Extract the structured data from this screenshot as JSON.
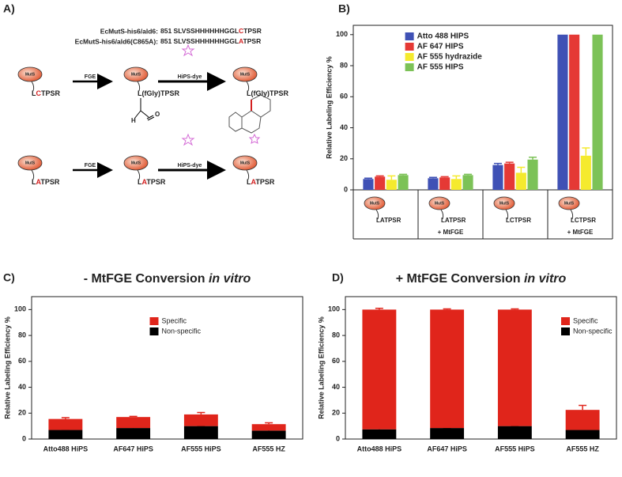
{
  "panel_labels": [
    "A)",
    "B)",
    "C)",
    "D)"
  ],
  "scheme": {
    "sequences": [
      {
        "name": "EcMutS-his6/ald6:",
        "sequence": [
          "851 SLVSSHHHHHHGGL",
          "C",
          "TPSR"
        ]
      },
      {
        "name": "EcMutS-his6/ald6(C865A):",
        "sequence": [
          "851 SLVSSHHHHHHGGL",
          "A",
          "TPSR"
        ]
      }
    ],
    "protein": "MutS",
    "enzyme": "FGE",
    "reagent": "HiPS-dye",
    "rows": [
      {
        "labels": [
          [
            "L",
            "C",
            "TPSR"
          ],
          [
            "L(fGly)TPSR"
          ],
          [
            "L(fGly)TPSR"
          ]
        ]
      },
      {
        "labels": [
          [
            "L",
            "A",
            "TPSR"
          ],
          [
            "L",
            "A",
            "TPSR"
          ],
          [
            "L",
            "A",
            "TPSR"
          ]
        ]
      }
    ],
    "aldehyde": [
      "H",
      "O"
    ]
  },
  "chart_data": [
    {
      "type": "bar",
      "ylabel": "Relative Labeling Efficiency %",
      "categories": [
        "LATPSR",
        "LATPSR",
        "LCTPSR",
        "LCTPSR"
      ],
      "category_notes": [
        null,
        "+ MtFGE",
        null,
        "+ MtFGE"
      ],
      "series": [
        {
          "name": "Atto 488 HIPS",
          "color": "#3f51b5",
          "values": [
            7,
            7.5,
            16,
            100
          ],
          "errors": [
            0.5,
            0.5,
            1,
            0
          ]
        },
        {
          "name": "AF 647 HIPS",
          "color": "#e53935",
          "values": [
            8.5,
            8,
            17,
            100
          ],
          "errors": [
            0.5,
            0.5,
            0.8,
            0
          ]
        },
        {
          "name": "AF 555 hydrazide",
          "color": "#f5ea2e",
          "values": [
            6.5,
            7,
            11,
            22
          ],
          "errors": [
            2.5,
            2,
            3.5,
            5
          ]
        },
        {
          "name": "AF 555 HIPS",
          "color": "#7cc257",
          "values": [
            9.5,
            9.5,
            19.5,
            100
          ],
          "errors": [
            0.5,
            0.5,
            1.5,
            0
          ]
        }
      ],
      "ylim": [
        0,
        106
      ],
      "yticks": [
        0,
        20,
        40,
        60,
        80,
        100
      ],
      "legend": "upper left"
    },
    {
      "type": "stacked_bar",
      "title": "- MtFGE Conversion",
      "title_emphasis": "in vitro",
      "ylabel": "Relative Labeling Efficiency %",
      "categories": [
        "Atto488 HiPS",
        "AF647 HiPS",
        "AF555 HiPS",
        "AF555 HZ"
      ],
      "series": [
        {
          "name": "Non-specific",
          "color": "#000000",
          "values": [
            7,
            8.5,
            10,
            6.5
          ],
          "errors": [
            0.3,
            0.5,
            0.3,
            2
          ]
        },
        {
          "name": "Specific",
          "color": "#e0251b",
          "values": [
            8.5,
            8.5,
            9,
            5
          ],
          "errors": [
            1,
            0.5,
            1.5,
            1
          ]
        }
      ],
      "ylim": [
        0,
        110
      ],
      "yticks": [
        0,
        20,
        40,
        60,
        80,
        100
      ],
      "legend": "upper center"
    },
    {
      "type": "stacked_bar",
      "title": "+ MtFGE Conversion",
      "title_emphasis": "in vitro",
      "ylabel": "Relative Labeling Efficiency %",
      "categories": [
        "Atto488 HiPS",
        "AF647 HiPS",
        "AF555 HiPS",
        "AF555 HZ"
      ],
      "series": [
        {
          "name": "Non-specific",
          "color": "#000000",
          "values": [
            7.5,
            8.5,
            10,
            7
          ],
          "errors": [
            1,
            0.3,
            0.3,
            2.5
          ]
        },
        {
          "name": "Specific",
          "color": "#e0251b",
          "values": [
            92.5,
            91.5,
            90,
            15.5
          ],
          "errors": [
            1,
            0.5,
            0.5,
            3.5
          ]
        }
      ],
      "ylim": [
        0,
        110
      ],
      "yticks": [
        0,
        20,
        40,
        60,
        80,
        100
      ],
      "legend": "upper right"
    }
  ]
}
